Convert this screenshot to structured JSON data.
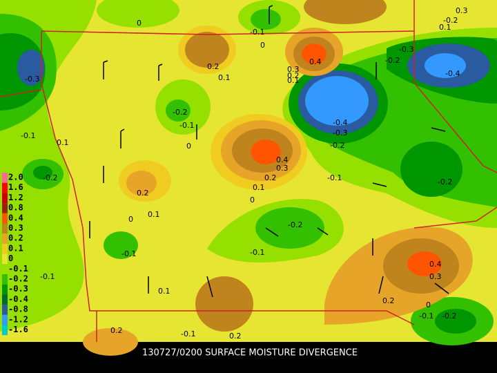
{
  "title": "130727/0200 SURFACE MOISTURE DIVERGENCE",
  "legend": {
    "labels": [
      "2.0",
      "1.6",
      "1.2",
      "0.8",
      "0.4",
      "0.3",
      "0.2",
      "0.1",
      "0",
      "-0.1",
      "-0.2",
      "-0.3",
      "-0.4",
      "-0.8",
      "-1.2",
      "-1.6"
    ],
    "colors": [
      "#ff6699",
      "#ff0000",
      "#cc0000",
      "#992200",
      "#ff5500",
      "#c0841e",
      "#e6a428",
      "#f0cc20",
      "#e6e632",
      "#96e000",
      "#33c000",
      "#009600",
      "#006a30",
      "#2a5aa0",
      "#3399ff",
      "#00cccc"
    ]
  },
  "contour_labels": [
    "0",
    "-0.1",
    "0",
    "-0.3",
    "0.3",
    "-0.2",
    "0.1",
    "-0.2",
    "-0.4",
    "0.4",
    "0.3",
    "0.2",
    "0.1",
    "0.2",
    "0.1",
    "-0.3",
    "-0.2",
    "-0.1",
    "0",
    "-0.4",
    "-0.3",
    "-0.2",
    "0.4",
    "0.3",
    "0.2",
    "0.1",
    "0",
    "-0.1",
    "-0.2",
    "-0.2",
    "0.2",
    "0.1",
    "0",
    "-0.2",
    "-0.1",
    "-0.1",
    "0.4",
    "0.3",
    "0.2",
    "0",
    "-0.1",
    "-0.2",
    "-0.1",
    "0.1",
    "0.1",
    "-0.1",
    "0.2",
    "-0.1",
    "0.2"
  ]
}
